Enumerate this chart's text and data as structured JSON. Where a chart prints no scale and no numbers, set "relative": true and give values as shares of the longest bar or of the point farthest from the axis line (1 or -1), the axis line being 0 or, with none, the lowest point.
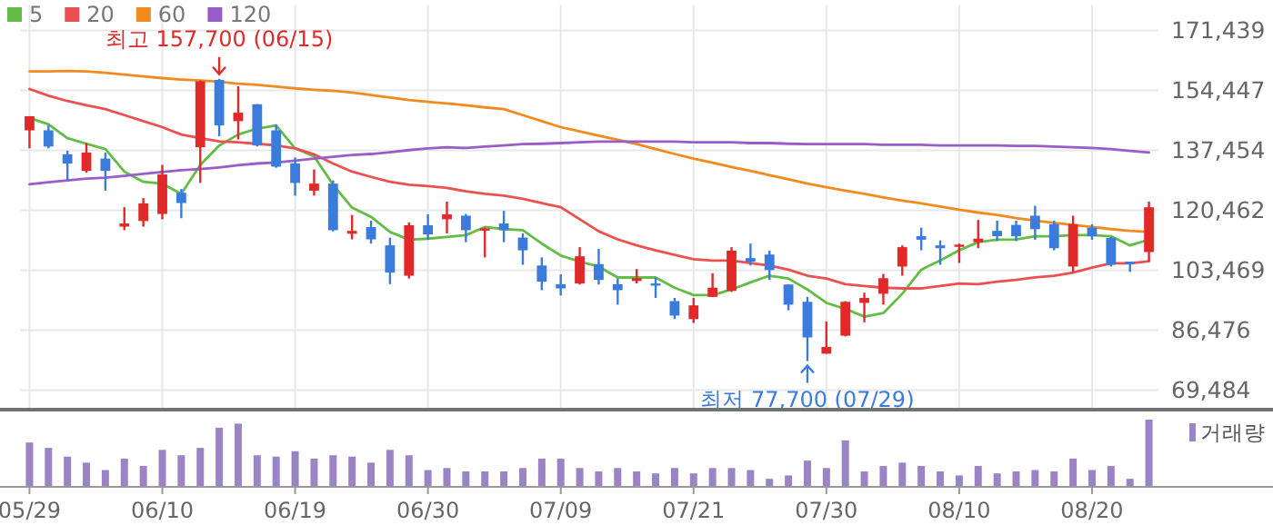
{
  "chart_data": [
    {
      "type": "candlestick",
      "categories": [
        null,
        null,
        null,
        null,
        null,
        null,
        null,
        null,
        null,
        null,
        null,
        null,
        null,
        null,
        null,
        null,
        null,
        null,
        null,
        null,
        null,
        null,
        null,
        null,
        null,
        null,
        null,
        null,
        null,
        null,
        null,
        null,
        null,
        null,
        null,
        null,
        null,
        null,
        null,
        null,
        null,
        null,
        null,
        null,
        null,
        null,
        null,
        null,
        null,
        null,
        null,
        null,
        null,
        null,
        null,
        null,
        null,
        null,
        null,
        null
      ],
      "ohlc": [
        [
          143100,
          147100,
          138000,
          147100
        ],
        [
          143100,
          144500,
          138000,
          138500
        ],
        [
          136300,
          137300,
          128900,
          133700
        ],
        [
          131600,
          139500,
          131100,
          136800
        ],
        [
          135100,
          136800,
          126000,
          131600
        ],
        [
          115800,
          121300,
          114800,
          116700
        ],
        [
          117400,
          123900,
          115800,
          122400
        ],
        [
          119400,
          133300,
          117900,
          130600
        ],
        [
          125400,
          126500,
          118200,
          122500
        ],
        [
          138300,
          157200,
          128200,
          157000
        ],
        [
          157400,
          157700,
          141400,
          144500
        ],
        [
          145700,
          155600,
          140500,
          148100
        ],
        [
          150500,
          150500,
          138500,
          138800
        ],
        [
          143100,
          144800,
          132500,
          132800
        ],
        [
          133700,
          135400,
          124600,
          128200
        ],
        [
          126000,
          132000,
          124600,
          128000
        ],
        [
          128000,
          128900,
          114500,
          114800
        ],
        [
          113800,
          119100,
          112200,
          114600
        ],
        [
          115700,
          117500,
          111000,
          112200
        ],
        [
          110500,
          112700,
          99500,
          102800
        ],
        [
          101900,
          117000,
          101100,
          116200
        ],
        [
          116200,
          119300,
          112100,
          113600
        ],
        [
          117900,
          122900,
          113900,
          119300
        ],
        [
          118900,
          119400,
          111400,
          114800
        ],
        [
          114800,
          115500,
          107100,
          115300
        ],
        [
          116700,
          120300,
          111400,
          114800
        ],
        [
          112700,
          113900,
          105000,
          109100
        ],
        [
          104800,
          107100,
          97800,
          100200
        ],
        [
          99500,
          102300,
          96300,
          98300
        ],
        [
          99700,
          110000,
          99400,
          107400
        ],
        [
          105200,
          109500,
          99400,
          100700
        ],
        [
          99500,
          101100,
          93700,
          97800
        ],
        [
          100400,
          103800,
          99700,
          101200
        ],
        [
          99700,
          101400,
          95600,
          99400
        ],
        [
          94700,
          95600,
          89600,
          90600
        ],
        [
          89600,
          95600,
          88500,
          93500
        ],
        [
          95900,
          102600,
          95900,
          98500
        ],
        [
          97600,
          110000,
          97300,
          109000
        ],
        [
          106900,
          111000,
          104800,
          105900
        ],
        [
          107900,
          109000,
          100700,
          103500
        ],
        [
          99400,
          99500,
          92100,
          93700
        ],
        [
          94500,
          95900,
          77700,
          84400
        ],
        [
          79800,
          88900,
          79800,
          81700
        ],
        [
          84900,
          94700,
          84700,
          94500
        ],
        [
          94200,
          97100,
          88700,
          95600
        ],
        [
          96800,
          102400,
          93700,
          101200
        ],
        [
          104500,
          110500,
          101900,
          110000
        ],
        [
          113100,
          115500,
          109100,
          112100
        ],
        [
          110500,
          111900,
          105000,
          109700
        ],
        [
          110200,
          111000,
          105500,
          110700
        ],
        [
          111400,
          117700,
          109700,
          112400
        ],
        [
          114600,
          117500,
          111700,
          113100
        ],
        [
          116300,
          117500,
          111700,
          113100
        ],
        [
          118900,
          121700,
          112100,
          115100
        ],
        [
          116500,
          117500,
          109100,
          109700
        ],
        [
          104500,
          118900,
          103000,
          116500
        ],
        [
          115500,
          116500,
          112100,
          113100
        ],
        [
          112600,
          112900,
          104500,
          105000
        ],
        [
          105900,
          105900,
          103000,
          105200
        ],
        [
          108600,
          122900,
          105900,
          121300
        ]
      ],
      "colors": [
        "#e02a2a",
        "#3a7bdc",
        "#3a7bdc",
        "#e02a2a",
        "#3a7bdc",
        "#e02a2a",
        "#e02a2a",
        "#e02a2a",
        "#3a7bdc",
        "#e02a2a",
        "#3a7bdc",
        "#e02a2a",
        "#3a7bdc",
        "#3a7bdc",
        "#3a7bdc",
        "#e02a2a",
        "#3a7bdc",
        "#e02a2a",
        "#3a7bdc",
        "#3a7bdc",
        "#e02a2a",
        "#3a7bdc",
        "#e02a2a",
        "#3a7bdc",
        "#e02a2a",
        "#3a7bdc",
        "#3a7bdc",
        "#3a7bdc",
        "#3a7bdc",
        "#e02a2a",
        "#3a7bdc",
        "#3a7bdc",
        "#e02a2a",
        "#3a7bdc",
        "#3a7bdc",
        "#e02a2a",
        "#e02a2a",
        "#e02a2a",
        "#3a7bdc",
        "#3a7bdc",
        "#3a7bdc",
        "#3a7bdc",
        "#e02a2a",
        "#e02a2a",
        "#e02a2a",
        "#e02a2a",
        "#e02a2a",
        "#3a7bdc",
        "#3a7bdc",
        "#e02a2a",
        "#e02a2a",
        "#3a7bdc",
        "#3a7bdc",
        "#3a7bdc",
        "#3a7bdc",
        "#e02a2a",
        "#3a7bdc",
        "#3a7bdc",
        "#3a7bdc",
        "#e02a2a"
      ],
      "series": [
        {
          "name": "5",
          "type": "line",
          "color": "#62bd45",
          "values": [
            146600,
            144800,
            140900,
            139300,
            137800,
            131400,
            128500,
            128000,
            125100,
            133300,
            138800,
            141900,
            143600,
            144500,
            138000,
            135700,
            127700,
            121200,
            118600,
            114300,
            112100,
            112400,
            112900,
            113400,
            115700,
            115100,
            114800,
            111000,
            107600,
            105900,
            104500,
            101400,
            101400,
            101400,
            98500,
            96400,
            96400,
            98000,
            100000,
            101900,
            101100,
            98000,
            94200,
            92500,
            90300,
            91300,
            96800,
            103600,
            106200,
            109100,
            111400,
            112100,
            112200,
            113100,
            113100,
            113400,
            113400,
            113100,
            110500,
            112100
          ]
        },
        {
          "name": "20",
          "type": "line",
          "color": "#ec5050",
          "values": [
            154800,
            152900,
            151400,
            150200,
            149100,
            147400,
            145700,
            144000,
            141900,
            140900,
            140000,
            139700,
            139300,
            138800,
            138000,
            136300,
            133700,
            131400,
            129900,
            128500,
            127700,
            127300,
            126800,
            125800,
            125100,
            124600,
            123700,
            122500,
            121300,
            117900,
            114500,
            112200,
            110500,
            109100,
            107800,
            106600,
            106200,
            106200,
            105500,
            104800,
            103600,
            101900,
            101100,
            99500,
            99000,
            98500,
            98300,
            98300,
            99000,
            99700,
            99500,
            100200,
            100700,
            101400,
            101900,
            102800,
            104200,
            105400,
            105400,
            106000
          ]
        },
        {
          "name": "60",
          "type": "line",
          "color": "#f28a1e",
          "values": [
            159800,
            159800,
            159900,
            159800,
            159400,
            158900,
            158400,
            157900,
            157500,
            157200,
            156900,
            156300,
            156000,
            155500,
            155000,
            154600,
            154300,
            153800,
            153100,
            152400,
            151700,
            151200,
            150700,
            150200,
            149600,
            149100,
            147400,
            145700,
            144000,
            142800,
            141600,
            140400,
            139200,
            137800,
            136400,
            135100,
            133900,
            132700,
            131600,
            130400,
            129200,
            128000,
            127000,
            126000,
            125100,
            124100,
            123200,
            122400,
            121500,
            120600,
            119800,
            119100,
            118200,
            117500,
            116900,
            116300,
            115700,
            115100,
            114600,
            114300
          ]
        },
        {
          "name": "120",
          "type": "line",
          "color": "#9a5cc9",
          "values": [
            127800,
            128400,
            128900,
            129400,
            129700,
            130200,
            130800,
            131300,
            131800,
            132100,
            132600,
            133200,
            133700,
            134000,
            134500,
            135100,
            135600,
            136100,
            136400,
            136900,
            137500,
            138000,
            138300,
            138100,
            138500,
            138800,
            139200,
            139300,
            139500,
            139700,
            139900,
            139900,
            139900,
            139900,
            139900,
            139700,
            139700,
            139700,
            139500,
            139500,
            139300,
            139200,
            139200,
            139200,
            139200,
            139000,
            139000,
            139000,
            138800,
            138800,
            138800,
            138800,
            138700,
            138700,
            138500,
            138300,
            138100,
            137800,
            137300,
            136800
          ]
        }
      ],
      "ylim": [
        64200,
        171439
      ],
      "yticks": [
        {
          "value": 69484,
          "label": "69,484"
        },
        {
          "value": 86476,
          "label": "86,476"
        },
        {
          "value": 103469,
          "label": "103,469"
        },
        {
          "value": 120462,
          "label": "120,462"
        },
        {
          "value": 137454,
          "label": "137,454"
        },
        {
          "value": 154447,
          "label": "154,447"
        },
        {
          "value": 171439,
          "label": "171,439"
        }
      ],
      "grid": true,
      "legend": "top left",
      "tick_labels": "y",
      "annotations": [
        {
          "text": "최고 157,700 (06/15)",
          "y": 157700
        },
        {
          "text": "최저 77,700 (07/29)",
          "y": 77700
        }
      ]
    },
    {
      "type": "bar",
      "relative": true,
      "categories": [
        "05/29",
        null,
        null,
        null,
        null,
        null,
        null,
        "06/10",
        null,
        null,
        null,
        null,
        null,
        null,
        "06/19",
        null,
        null,
        null,
        null,
        null,
        null,
        "06/30",
        null,
        null,
        null,
        null,
        null,
        null,
        "07/09",
        null,
        null,
        null,
        null,
        null,
        null,
        "07/21",
        null,
        null,
        null,
        null,
        null,
        null,
        "07/30",
        null,
        null,
        null,
        null,
        null,
        null,
        "08/10",
        null,
        null,
        null,
        null,
        null,
        null,
        "08/20",
        null,
        null,
        null
      ],
      "series": [
        {
          "name": "거래량",
          "color": "#9b84c6",
          "values": [
            0.66,
            0.58,
            0.45,
            0.36,
            0.25,
            0.42,
            0.31,
            0.55,
            0.47,
            0.58,
            0.88,
            0.94,
            0.47,
            0.45,
            0.53,
            0.42,
            0.47,
            0.45,
            0.36,
            0.55,
            0.47,
            0.25,
            0.28,
            0.23,
            0.23,
            0.23,
            0.28,
            0.42,
            0.42,
            0.28,
            0.23,
            0.28,
            0.23,
            0.2,
            0.28,
            0.2,
            0.28,
            0.28,
            0.25,
            0.12,
            0.17,
            0.39,
            0.28,
            0.69,
            0.23,
            0.31,
            0.36,
            0.31,
            0.23,
            0.17,
            0.31,
            0.2,
            0.23,
            0.25,
            0.23,
            0.42,
            0.25,
            0.31,
            0.12,
            1
          ]
        }
      ],
      "legend": "top right",
      "tick_labels": "x"
    }
  ]
}
